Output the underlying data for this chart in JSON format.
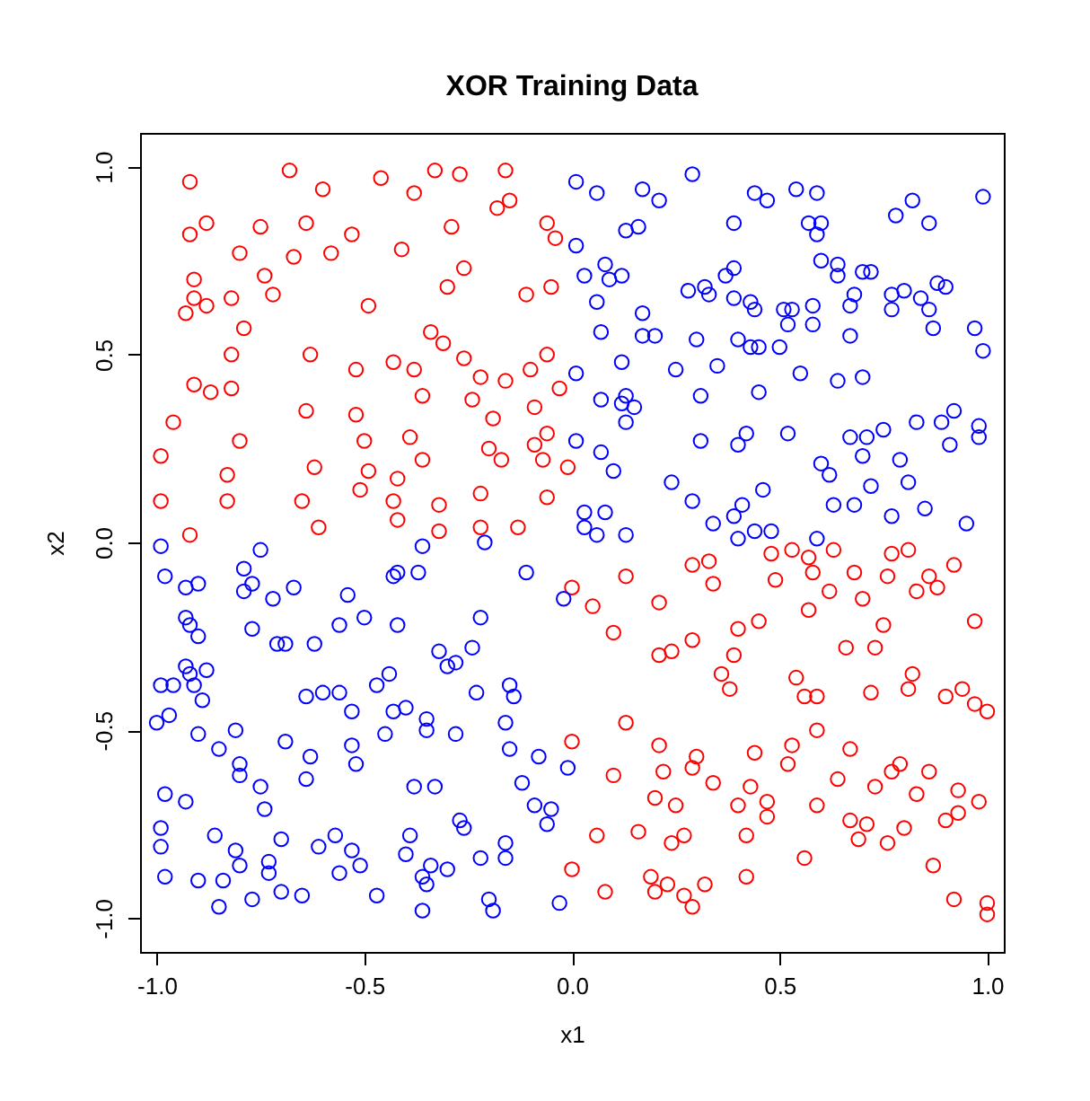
{
  "chart_data": {
    "type": "scatter",
    "title": "XOR Training Data",
    "xlabel": "x1",
    "ylabel": "x2",
    "marker": "circle",
    "grid": false,
    "xlim": [
      -1.04,
      1.04
    ],
    "ylim": [
      -1.09,
      1.09
    ],
    "xticks": [
      {
        "value": -1,
        "label": "-1.0"
      },
      {
        "value": -0.5,
        "label": "-0.5"
      },
      {
        "value": 0,
        "label": "0.0"
      },
      {
        "value": 0.5,
        "label": "0.5"
      },
      {
        "value": 1,
        "label": "1.0"
      }
    ],
    "yticks": [
      {
        "value": -1,
        "label": "-1.0"
      },
      {
        "value": -0.5,
        "label": "-0.5"
      },
      {
        "value": 0,
        "label": "0.0"
      },
      {
        "value": 0.5,
        "label": "0.5"
      },
      {
        "value": 1,
        "label": "1.0"
      }
    ],
    "series": [
      {
        "color": "#ff0000",
        "x": [
          -0.92,
          -0.68,
          -0.6,
          -0.46,
          -0.33,
          -0.27,
          -0.16,
          -0.38,
          -0.92,
          -0.88,
          -0.75,
          -0.64,
          -0.8,
          -0.67,
          -0.58,
          -0.53,
          -0.41,
          -0.29,
          -0.18,
          -0.15,
          -0.06,
          -0.04,
          -0.91,
          -0.91,
          -0.93,
          -0.88,
          -0.82,
          -0.79,
          -0.74,
          -0.72,
          -0.49,
          -0.26,
          -0.3,
          -0.11,
          -0.05,
          -0.82,
          -0.63,
          -0.34,
          -0.31,
          -0.91,
          -0.87,
          -0.82,
          -0.52,
          -0.43,
          -0.38,
          -0.26,
          -0.22,
          -0.16,
          -0.1,
          -0.06,
          -0.03,
          -0.96,
          -0.64,
          -0.52,
          -0.36,
          -0.24,
          -0.19,
          -0.09,
          -0.99,
          -0.8,
          -0.5,
          -0.39,
          -0.62,
          -0.49,
          -0.36,
          -0.2,
          -0.17,
          -0.09,
          -0.06,
          -0.07,
          -0.01,
          -0.99,
          -0.83,
          -0.83,
          -0.65,
          -0.51,
          -0.42,
          -0.43,
          -0.32,
          -0.22,
          -0.06,
          -0.92,
          -0.61,
          -0.42,
          -0.32,
          -0.22,
          -0.13,
          0.0,
          0.13,
          0.29,
          0.33,
          0.34,
          0.48,
          0.53,
          0.57,
          0.63,
          0.58,
          0.49,
          0.68,
          0.77,
          0.81,
          0.76,
          0.86,
          0.92,
          0.88,
          0.83,
          0.05,
          0.21,
          0.1,
          0.29,
          0.21,
          0.24,
          0.4,
          0.45,
          0.39,
          0.57,
          0.62,
          0.7,
          0.75,
          0.66,
          0.73,
          0.97,
          0.36,
          0.38,
          0.54,
          0.56,
          0.59,
          0.72,
          0.82,
          0.81,
          0.9,
          0.94,
          0.97,
          1.0,
          0.13,
          0.0,
          0.21,
          0.3,
          0.1,
          0.22,
          0.29,
          0.44,
          0.52,
          0.53,
          0.59,
          0.67,
          0.34,
          0.43,
          0.2,
          0.25,
          0.4,
          0.47,
          0.64,
          0.73,
          0.79,
          0.77,
          0.86,
          0.83,
          0.93,
          0.98,
          0.93,
          0.9,
          0.47,
          0.59,
          0.67,
          0.71,
          0.8,
          0.69,
          0.76,
          0.06,
          0.16,
          0.27,
          0.24,
          0.42,
          0.56,
          0.87,
          0.0,
          0.19,
          0.23,
          0.32,
          0.42,
          0.08,
          0.2,
          0.27,
          0.29,
          0.92,
          1.0,
          1.0
        ],
        "values": [
          0.96,
          0.99,
          0.94,
          0.97,
          0.99,
          0.98,
          0.99,
          0.93,
          0.82,
          0.85,
          0.84,
          0.85,
          0.77,
          0.76,
          0.77,
          0.82,
          0.78,
          0.84,
          0.89,
          0.91,
          0.85,
          0.81,
          0.7,
          0.65,
          0.61,
          0.63,
          0.65,
          0.57,
          0.71,
          0.66,
          0.63,
          0.73,
          0.68,
          0.66,
          0.68,
          0.5,
          0.5,
          0.56,
          0.53,
          0.42,
          0.4,
          0.41,
          0.46,
          0.48,
          0.46,
          0.49,
          0.44,
          0.43,
          0.46,
          0.5,
          0.41,
          0.32,
          0.35,
          0.34,
          0.39,
          0.38,
          0.33,
          0.36,
          0.23,
          0.27,
          0.27,
          0.28,
          0.2,
          0.19,
          0.22,
          0.25,
          0.22,
          0.26,
          0.29,
          0.22,
          0.2,
          0.11,
          0.18,
          0.11,
          0.11,
          0.14,
          0.17,
          0.11,
          0.1,
          0.13,
          0.12,
          0.02,
          0.04,
          0.06,
          0.03,
          0.04,
          0.04,
          -0.12,
          -0.09,
          -0.06,
          -0.05,
          -0.11,
          -0.03,
          -0.02,
          -0.04,
          -0.02,
          -0.08,
          -0.1,
          -0.08,
          -0.03,
          -0.02,
          -0.09,
          -0.09,
          -0.06,
          -0.12,
          -0.13,
          -0.17,
          -0.16,
          -0.24,
          -0.26,
          -0.3,
          -0.29,
          -0.23,
          -0.21,
          -0.3,
          -0.18,
          -0.13,
          -0.15,
          -0.22,
          -0.28,
          -0.28,
          -0.21,
          -0.35,
          -0.39,
          -0.36,
          -0.41,
          -0.41,
          -0.4,
          -0.35,
          -0.39,
          -0.41,
          -0.39,
          -0.43,
          -0.45,
          -0.48,
          -0.53,
          -0.54,
          -0.57,
          -0.62,
          -0.61,
          -0.6,
          -0.56,
          -0.59,
          -0.54,
          -0.5,
          -0.55,
          -0.64,
          -0.65,
          -0.68,
          -0.7,
          -0.7,
          -0.69,
          -0.63,
          -0.65,
          -0.59,
          -0.61,
          -0.61,
          -0.67,
          -0.66,
          -0.69,
          -0.72,
          -0.74,
          -0.73,
          -0.7,
          -0.74,
          -0.75,
          -0.76,
          -0.79,
          -0.8,
          -0.78,
          -0.77,
          -0.78,
          -0.8,
          -0.78,
          -0.84,
          -0.86,
          -0.87,
          -0.89,
          -0.91,
          -0.91,
          -0.89,
          -0.93,
          -0.93,
          -0.94,
          -0.97,
          -0.95,
          -0.96,
          -0.99
        ]
      },
      {
        "color": "#0000ff",
        "x": [
          0.01,
          0.06,
          0.17,
          0.21,
          0.29,
          0.44,
          0.47,
          0.54,
          0.59,
          0.82,
          0.99,
          0.78,
          0.86,
          0.01,
          0.13,
          0.16,
          0.39,
          0.57,
          0.6,
          0.59,
          0.08,
          0.03,
          0.12,
          0.09,
          0.06,
          0.28,
          0.32,
          0.33,
          0.37,
          0.39,
          0.39,
          0.43,
          0.44,
          0.51,
          0.53,
          0.52,
          0.58,
          0.6,
          0.64,
          0.64,
          0.7,
          0.72,
          0.68,
          0.67,
          0.77,
          0.8,
          0.84,
          0.88,
          0.9,
          0.77,
          0.86,
          0.58,
          0.87,
          0.97,
          0.99,
          0.17,
          0.07,
          0.17,
          0.2,
          0.3,
          0.4,
          0.43,
          0.45,
          0.5,
          0.67,
          0.01,
          0.12,
          0.25,
          0.35,
          0.55,
          0.64,
          0.7,
          0.07,
          0.12,
          0.13,
          0.15,
          0.13,
          0.31,
          0.45,
          0.83,
          0.89,
          0.92,
          0.98,
          0.98,
          0.91,
          0.01,
          0.07,
          0.1,
          0.31,
          0.42,
          0.4,
          0.52,
          0.67,
          0.71,
          0.75,
          0.7,
          0.6,
          0.62,
          0.79,
          0.81,
          0.72,
          0.24,
          0.46,
          0.03,
          0.08,
          0.03,
          0.06,
          0.13,
          0.29,
          0.34,
          0.39,
          0.41,
          0.4,
          0.44,
          0.48,
          0.59,
          0.63,
          0.68,
          0.77,
          0.85,
          0.95,
          -0.99,
          -0.75,
          -0.36,
          -0.21,
          -0.98,
          -0.93,
          -0.9,
          -0.79,
          -0.79,
          -0.77,
          -0.72,
          -0.67,
          -0.54,
          -0.43,
          -0.42,
          -0.37,
          -0.11,
          -0.02,
          -0.93,
          -0.92,
          -0.9,
          -0.77,
          -0.71,
          -0.69,
          -0.62,
          -0.56,
          -0.5,
          -0.42,
          -0.22,
          -0.24,
          -0.32,
          -0.28,
          -0.3,
          -0.93,
          -0.92,
          -0.88,
          -0.99,
          -0.96,
          -0.91,
          -0.89,
          -1.0,
          -0.97,
          -0.9,
          -0.81,
          -0.85,
          -0.69,
          -0.64,
          -0.6,
          -0.56,
          -0.47,
          -0.44,
          -0.53,
          -0.43,
          -0.4,
          -0.35,
          -0.35,
          -0.45,
          -0.28,
          -0.23,
          -0.15,
          -0.14,
          -0.16,
          -0.15,
          -0.08,
          -0.01,
          -0.53,
          -0.52,
          -0.63,
          -0.64,
          -0.8,
          -0.8,
          -0.75,
          -0.74,
          -0.98,
          -0.93,
          -0.38,
          -0.33,
          -0.12,
          -0.09,
          -0.05,
          -0.06,
          -0.99,
          -0.99,
          -0.86,
          -0.81,
          -0.8,
          -0.73,
          -0.73,
          -0.7,
          -0.61,
          -0.57,
          -0.53,
          -0.56,
          -0.51,
          -0.39,
          -0.4,
          -0.34,
          -0.36,
          -0.35,
          -0.3,
          -0.27,
          -0.26,
          -0.22,
          -0.16,
          -0.16,
          -0.98,
          -0.9,
          -0.84,
          -0.85,
          -0.77,
          -0.7,
          -0.65,
          -0.47,
          -0.36,
          -0.2,
          -0.19,
          -0.03
        ],
        "values": [
          0.96,
          0.93,
          0.94,
          0.91,
          0.98,
          0.93,
          0.91,
          0.94,
          0.93,
          0.91,
          0.92,
          0.87,
          0.85,
          0.79,
          0.83,
          0.84,
          0.85,
          0.85,
          0.85,
          0.82,
          0.74,
          0.71,
          0.71,
          0.7,
          0.64,
          0.67,
          0.68,
          0.66,
          0.71,
          0.73,
          0.65,
          0.64,
          0.62,
          0.62,
          0.62,
          0.58,
          0.63,
          0.75,
          0.74,
          0.71,
          0.72,
          0.72,
          0.66,
          0.63,
          0.66,
          0.67,
          0.65,
          0.69,
          0.68,
          0.62,
          0.62,
          0.58,
          0.57,
          0.57,
          0.51,
          0.61,
          0.56,
          0.55,
          0.55,
          0.54,
          0.54,
          0.52,
          0.52,
          0.52,
          0.55,
          0.45,
          0.48,
          0.46,
          0.47,
          0.45,
          0.43,
          0.44,
          0.38,
          0.37,
          0.39,
          0.36,
          0.32,
          0.39,
          0.4,
          0.32,
          0.32,
          0.35,
          0.31,
          0.28,
          0.26,
          0.27,
          0.24,
          0.19,
          0.27,
          0.29,
          0.26,
          0.29,
          0.28,
          0.28,
          0.3,
          0.23,
          0.21,
          0.18,
          0.22,
          0.16,
          0.15,
          0.16,
          0.14,
          0.08,
          0.08,
          0.04,
          0.02,
          0.02,
          0.11,
          0.05,
          0.07,
          0.1,
          0.01,
          0.03,
          0.03,
          0.01,
          0.1,
          0.1,
          0.07,
          0.09,
          0.05,
          -0.01,
          -0.02,
          -0.01,
          0.0,
          -0.09,
          -0.12,
          -0.11,
          -0.07,
          -0.13,
          -0.11,
          -0.15,
          -0.12,
          -0.14,
          -0.09,
          -0.08,
          -0.08,
          -0.08,
          -0.15,
          -0.2,
          -0.22,
          -0.25,
          -0.23,
          -0.27,
          -0.27,
          -0.27,
          -0.22,
          -0.2,
          -0.22,
          -0.2,
          -0.28,
          -0.29,
          -0.32,
          -0.33,
          -0.33,
          -0.35,
          -0.34,
          -0.38,
          -0.38,
          -0.38,
          -0.42,
          -0.48,
          -0.46,
          -0.51,
          -0.5,
          -0.55,
          -0.53,
          -0.41,
          -0.4,
          -0.4,
          -0.38,
          -0.35,
          -0.45,
          -0.45,
          -0.44,
          -0.47,
          -0.5,
          -0.51,
          -0.51,
          -0.4,
          -0.38,
          -0.41,
          -0.48,
          -0.55,
          -0.57,
          -0.6,
          -0.54,
          -0.59,
          -0.57,
          -0.63,
          -0.59,
          -0.62,
          -0.65,
          -0.71,
          -0.67,
          -0.69,
          -0.65,
          -0.65,
          -0.64,
          -0.7,
          -0.71,
          -0.75,
          -0.76,
          -0.81,
          -0.78,
          -0.82,
          -0.86,
          -0.85,
          -0.88,
          -0.79,
          -0.81,
          -0.78,
          -0.82,
          -0.88,
          -0.86,
          -0.78,
          -0.83,
          -0.86,
          -0.89,
          -0.91,
          -0.87,
          -0.74,
          -0.76,
          -0.84,
          -0.8,
          -0.84,
          -0.89,
          -0.9,
          -0.9,
          -0.97,
          -0.95,
          -0.93,
          -0.94,
          -0.94,
          -0.98,
          -0.95,
          -0.98,
          -0.96
        ]
      }
    ]
  }
}
